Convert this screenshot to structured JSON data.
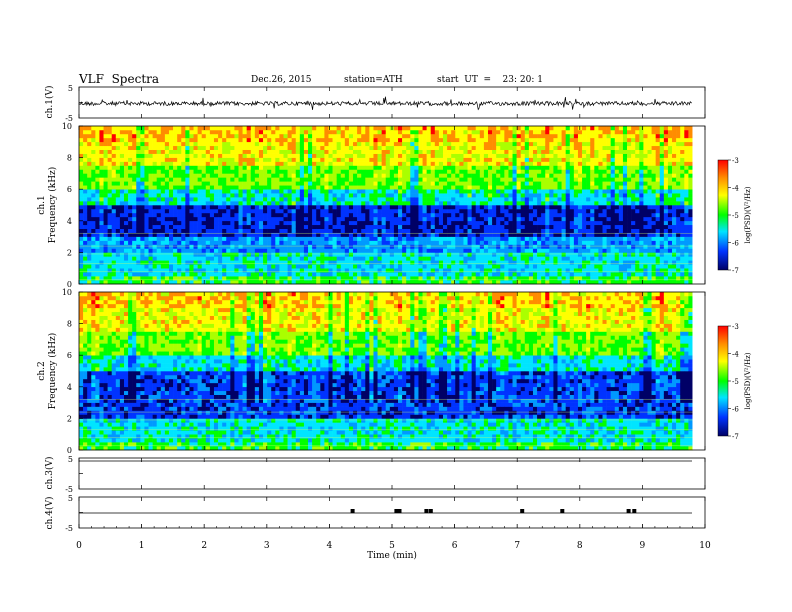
{
  "header": {
    "title": "VLF  Spectra",
    "date": "Dec.26, 2015",
    "station": "station=ATH",
    "start": "start  UT  =    23: 20: 1"
  },
  "chart_data": [
    {
      "type": "line",
      "panel": "ch1-waveform",
      "ylabel": "ch.1(V)",
      "yticks": [
        "5",
        "-5"
      ],
      "ylim": [
        -5,
        5
      ],
      "xlim": [
        0,
        10
      ],
      "description_value_range": [
        -2,
        2
      ]
    },
    {
      "type": "heatmap",
      "panel": "ch1-spectrogram",
      "ylabel_channel": "ch.1",
      "ylabel": "Frequency  (kHz)",
      "yticks": [
        "0",
        "2",
        "4",
        "6",
        "8",
        "10"
      ],
      "ylim": [
        0,
        10
      ],
      "xlim": [
        0,
        9.8
      ],
      "colorbar": {
        "label": "log(PSD)(V²/Hz)",
        "ticks": [
          "-3",
          "-4",
          "-5",
          "-6",
          "-7"
        ],
        "range": [
          -7,
          -3
        ],
        "colors": [
          "#ff0000",
          "#ff8c00",
          "#ffff00",
          "#00ff00",
          "#00e5ff",
          "#0033ff",
          "#000066"
        ]
      },
      "bands_khz": [
        [
          0,
          2,
          "cyan"
        ],
        [
          2,
          3,
          "blue"
        ],
        [
          3,
          5,
          "dark-blue"
        ],
        [
          5,
          7,
          "green"
        ],
        [
          7,
          10,
          "yellow-red"
        ]
      ]
    },
    {
      "type": "heatmap",
      "panel": "ch2-spectrogram",
      "ylabel_channel": "ch.2",
      "ylabel": "Frequency  (kHz)",
      "yticks": [
        "0",
        "2",
        "4",
        "6",
        "8",
        "10"
      ],
      "ylim": [
        0,
        10
      ],
      "xlim": [
        0,
        9.8
      ],
      "colorbar": {
        "label": "log(PSD)(V²/Hz)",
        "ticks": [
          "-3",
          "-4",
          "-5",
          "-6",
          "-7"
        ],
        "range": [
          -7,
          -3
        ],
        "colors": [
          "#ff0000",
          "#ff8c00",
          "#ffff00",
          "#00ff00",
          "#00e5ff",
          "#0033ff",
          "#000066"
        ]
      },
      "bands_khz": [
        [
          0,
          2,
          "cyan"
        ],
        [
          2,
          3,
          "blue"
        ],
        [
          3,
          5,
          "dark-blue"
        ],
        [
          5,
          7,
          "green"
        ],
        [
          7,
          10,
          "yellow-red"
        ]
      ]
    },
    {
      "type": "line",
      "panel": "ch3-waveform",
      "ylabel": "ch.3(V)",
      "yticks": [
        "5",
        "-5"
      ],
      "ylim": [
        -5,
        5
      ],
      "xlim": [
        0,
        10
      ],
      "value": 0
    },
    {
      "type": "line",
      "panel": "ch4-waveform",
      "ylabel": "ch.4(V)",
      "yticks": [
        "5",
        "-5"
      ],
      "ylim": [
        -5,
        5
      ],
      "xlim": [
        0,
        10
      ],
      "baseline": -2,
      "pulses_min": [
        4.37,
        5.07,
        5.12,
        5.55,
        5.62,
        7.08,
        7.72,
        8.78,
        8.87
      ]
    }
  ],
  "time_axis": {
    "xlabel": "Time  (min)",
    "ticks": [
      "0",
      "1",
      "2",
      "3",
      "4",
      "5",
      "6",
      "7",
      "8",
      "9",
      "10"
    ],
    "xlim": [
      0,
      10
    ]
  }
}
